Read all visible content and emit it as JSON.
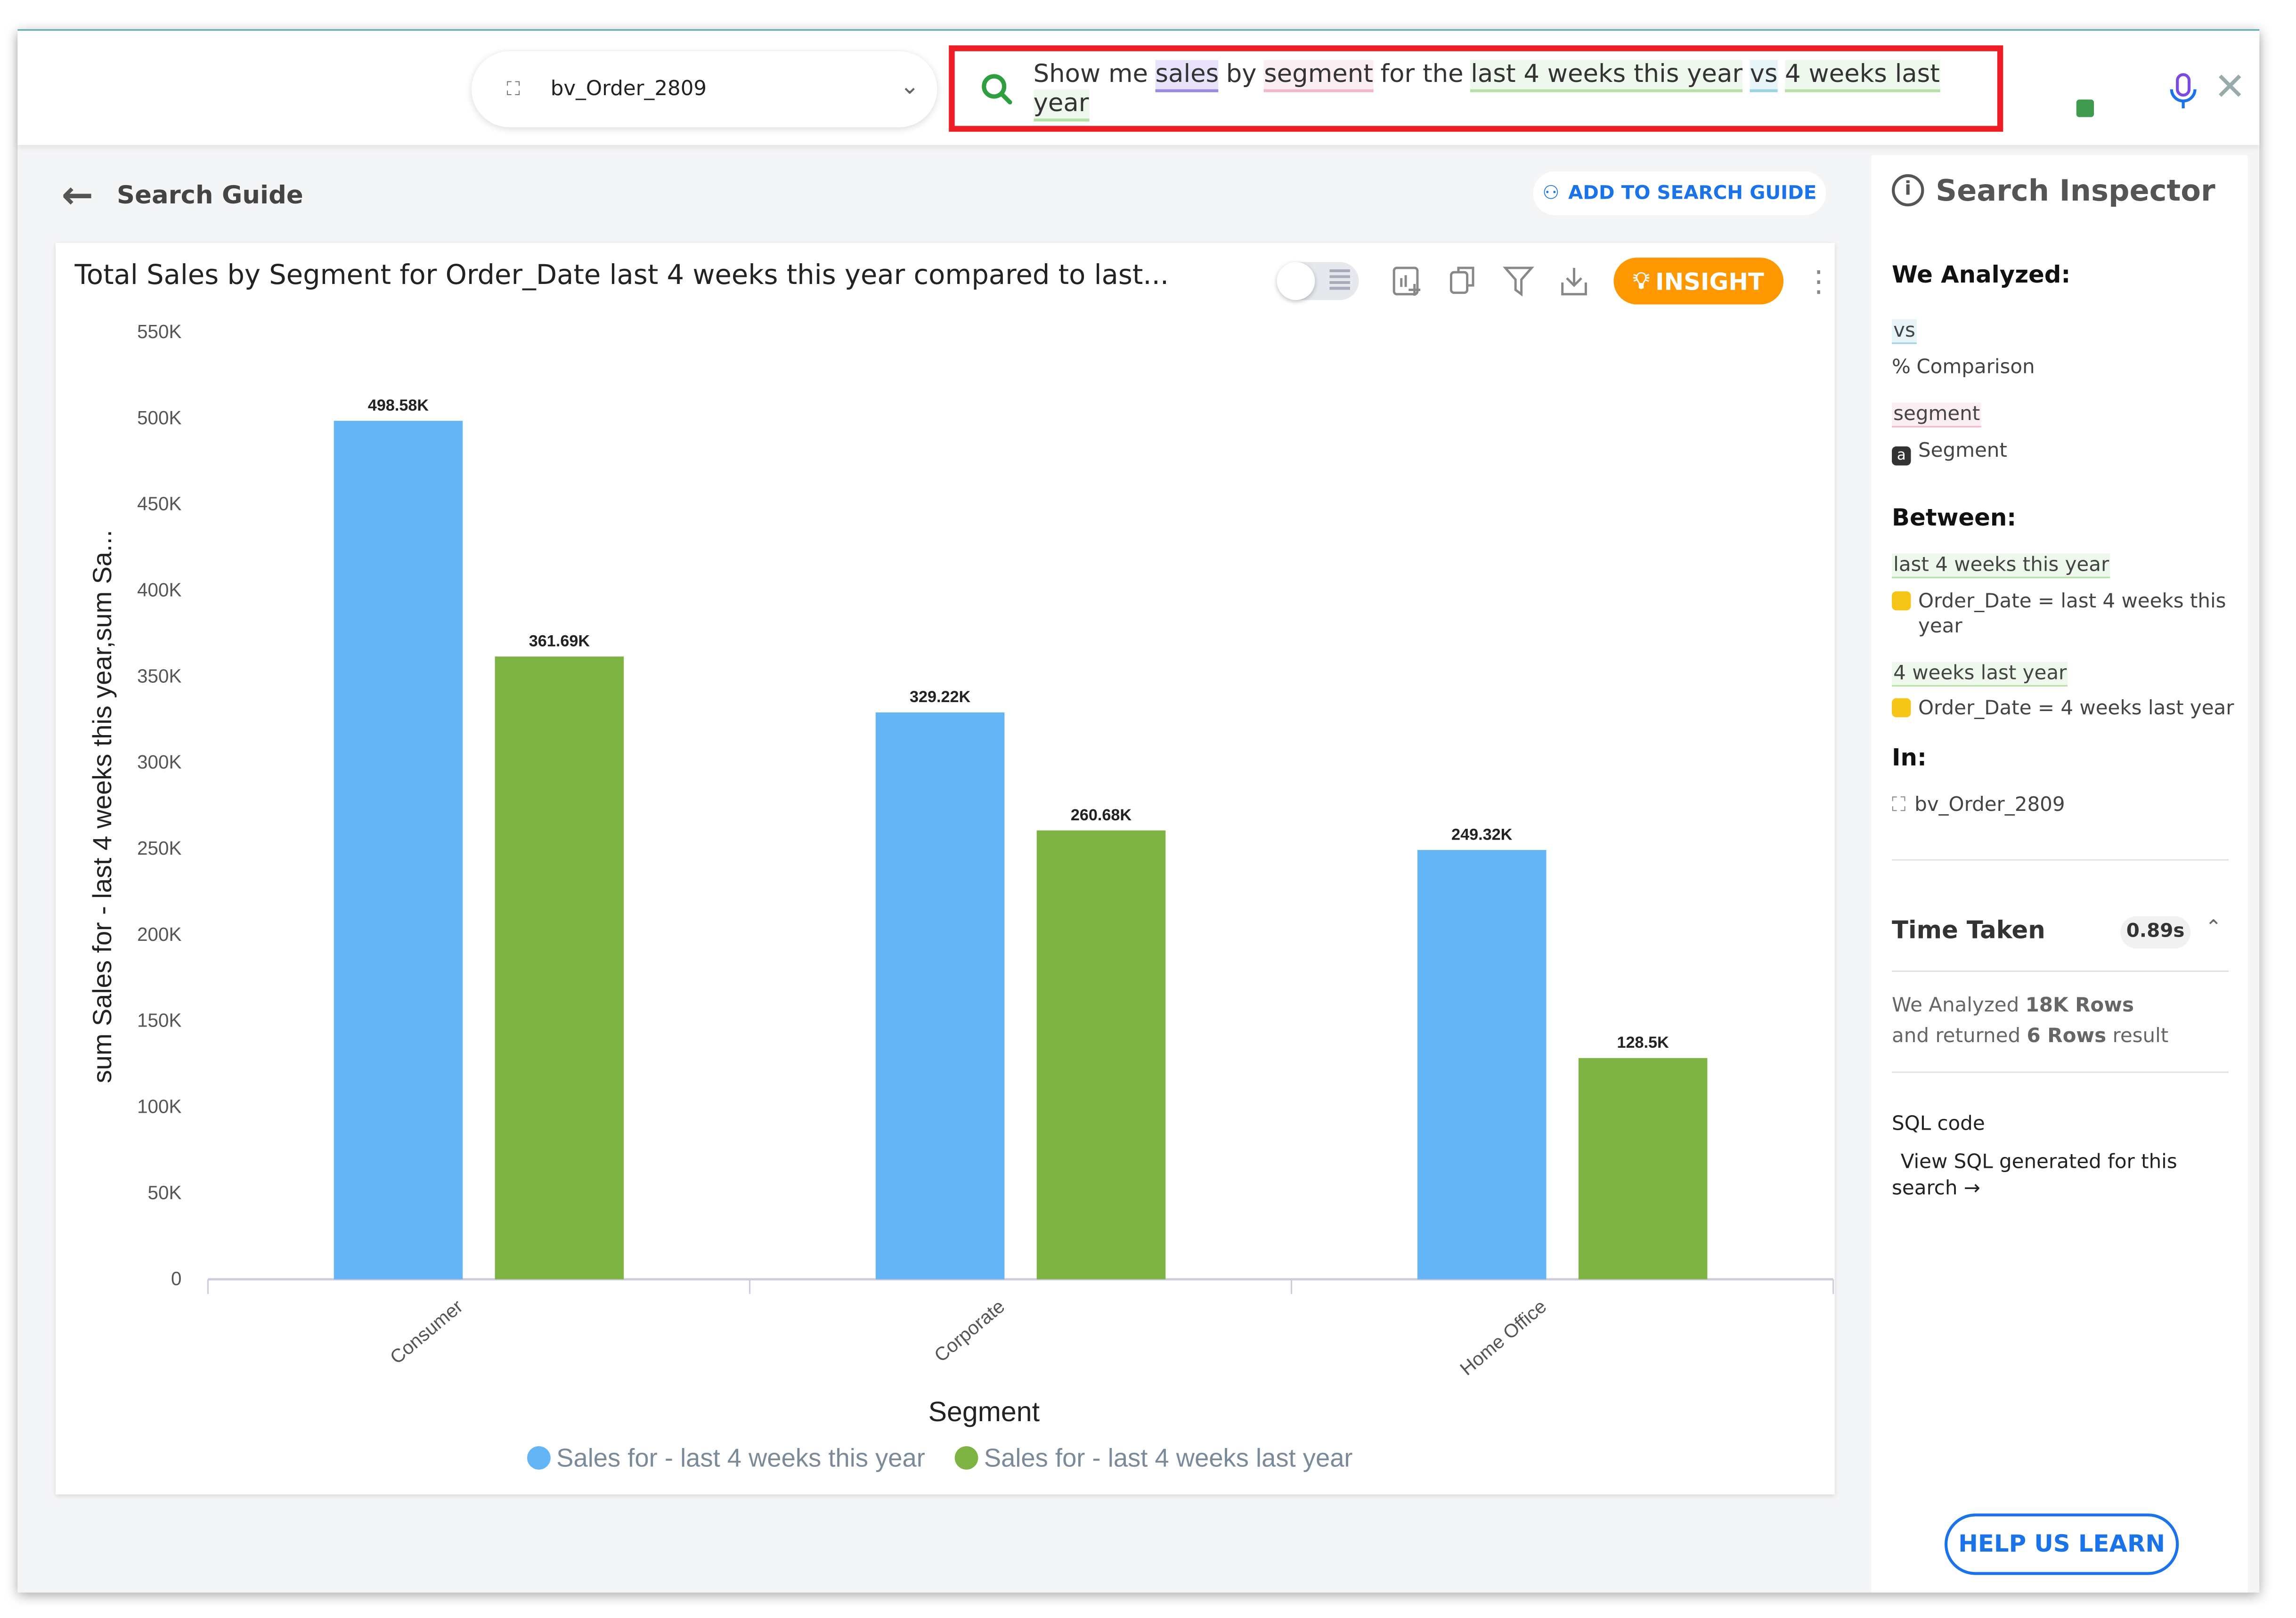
{
  "topbar": {
    "datasource": "bv_Order_2809",
    "query_tokens": [
      {
        "text": "Show me",
        "type": "plain"
      },
      {
        "text": "sales",
        "type": "measure"
      },
      {
        "text": "by",
        "type": "plain"
      },
      {
        "text": "segment",
        "type": "attribute"
      },
      {
        "text": "for the",
        "type": "plain"
      },
      {
        "text": "last 4 weeks this year",
        "type": "date"
      },
      {
        "text": "vs",
        "type": "keyword"
      },
      {
        "text": "4 weeks last year",
        "type": "date"
      }
    ]
  },
  "search_guide": {
    "label": "Search Guide",
    "add_label": "ADD TO SEARCH GUIDE"
  },
  "card": {
    "title": "Total Sales by Segment for Order_Date last 4 weeks this year compared to last...",
    "insight_label": "INSIGHT"
  },
  "chart_data": {
    "type": "bar",
    "categories": [
      "Consumer",
      "Corporate",
      "Home Office"
    ],
    "series": [
      {
        "name": "Sales for - last 4 weeks this year",
        "values": [
          498580,
          329220,
          249320
        ],
        "labels": [
          "498.58K",
          "329.22K",
          "249.32K"
        ],
        "color": "#64b5f6"
      },
      {
        "name": "Sales for - last 4 weeks last year",
        "values": [
          361690,
          260680,
          128500
        ],
        "labels": [
          "361.69K",
          "260.68K",
          "128.5K"
        ],
        "color": "#7cb342"
      }
    ],
    "xlabel": "Segment",
    "ylabel": "sum Sales for - last 4 weeks this year,sum Sa...",
    "ylim": [
      0,
      550000
    ],
    "yticks": [
      0,
      50000,
      100000,
      150000,
      200000,
      250000,
      300000,
      350000,
      400000,
      450000,
      500000,
      550000
    ],
    "ytick_labels": [
      "0",
      "50K",
      "100K",
      "150K",
      "200K",
      "250K",
      "300K",
      "350K",
      "400K",
      "450K",
      "500K",
      "550K"
    ],
    "legend": "bottom",
    "grid": false
  },
  "inspector": {
    "title": "Search Inspector",
    "analyzed_label": "We Analyzed:",
    "vs_token": "vs",
    "vs_desc": "Comparison",
    "segment_token": "segment",
    "segment_desc": "Segment",
    "between_label": "Between:",
    "range1_token": "last 4 weeks this year",
    "range1_desc": "Order_Date = last 4 weeks this",
    "range1_desc2": "year",
    "range2_token": "4 weeks last year",
    "range2_desc": "Order_Date = 4 weeks last year",
    "in_label": "In:",
    "in_value": "bv_Order_2809",
    "time_label": "Time Taken",
    "time_value": "0.89s",
    "rows_1a": "We Analyzed ",
    "rows_1b": "18K Rows",
    "rows_2a": "and returned ",
    "rows_2b": "6 Rows",
    "rows_2c": " result",
    "sql_label": "SQL code",
    "sql_link1": "View SQL generated for this",
    "sql_link2": "search →",
    "help_label": "HELP US LEARN"
  }
}
